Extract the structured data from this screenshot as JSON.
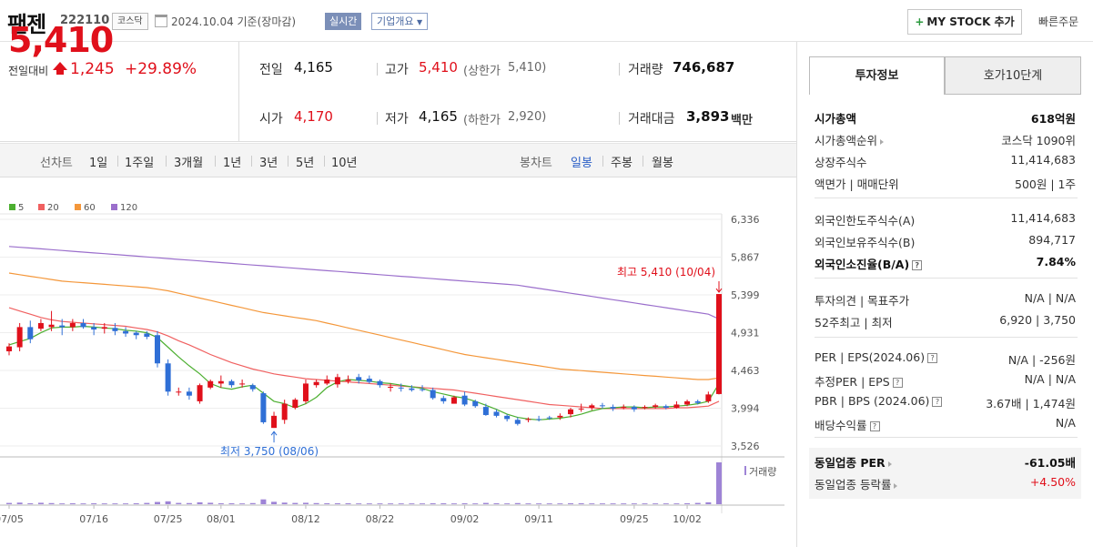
{
  "header": {
    "title": "팬젠",
    "code": "222110",
    "market": "코스닥",
    "date": "2024.10.04  기준(장마감)",
    "realtime": "실시간",
    "company_info": "기업개요",
    "mystock": "MY STOCK 추가",
    "quick_order": "빠른주문"
  },
  "price": {
    "current": "5,410",
    "change_label": "전일대비",
    "change": "1,245",
    "change_pct": "+29.89%",
    "prev_label": "전일",
    "prev": "4,165",
    "open_label": "시가",
    "open": "4,170",
    "high_label": "고가",
    "high": "5,410",
    "upper_label": "(상한가",
    "upper": "5,410)",
    "low_label": "저가",
    "low": "4,165",
    "lower_label": "(하한가",
    "lower": "2,920)",
    "volume_label": "거래량",
    "volume": "746,687",
    "amount_label": "거래대금",
    "amount": "3,893",
    "amount_unit": "백만"
  },
  "period_bar": {
    "line_label": "선차트",
    "line_items": [
      "1일",
      "1주일",
      "3개월",
      "1년",
      "3년",
      "5년",
      "10년"
    ],
    "candle_label": "봉차트",
    "candle_items": [
      "일봉",
      "주봉",
      "월봉"
    ],
    "active_candle": "일봉"
  },
  "colors": {
    "up": "#e0101b",
    "down": "#2f6fd6",
    "ma5": "#4caf30",
    "ma20": "#f06060",
    "ma60": "#f4973a",
    "ma120": "#9b6fcc",
    "volume": "#9e84d6",
    "accent": "#4c6aa3"
  },
  "chart_data": {
    "type": "candlestick",
    "legend": [
      {
        "name": "5",
        "color": "#4caf30"
      },
      {
        "name": "20",
        "color": "#f06060"
      },
      {
        "name": "60",
        "color": "#f4973a"
      },
      {
        "name": "120",
        "color": "#9b6fcc"
      }
    ],
    "y_ticks": [
      "6,336",
      "5,867",
      "5,399",
      "4,931",
      "4,463",
      "3,994",
      "3,526"
    ],
    "ylim": [
      3526,
      6336
    ],
    "x_ticks": [
      "07/05",
      "07/16",
      "07/25",
      "08/01",
      "08/12",
      "08/22",
      "09/02",
      "09/11",
      "09/25",
      "10/02"
    ],
    "max_label": "최고 5,410 (10/04)",
    "min_label": "최저 3,750 (08/06)",
    "volume_label": "거래량",
    "candles": [
      {
        "o": 4700,
        "c": 4760,
        "h": 4800,
        "l": 4650
      },
      {
        "o": 4750,
        "c": 5000,
        "h": 5050,
        "l": 4700
      },
      {
        "o": 5000,
        "c": 4850,
        "h": 5080,
        "l": 4800
      },
      {
        "o": 4980,
        "c": 5050,
        "h": 5100,
        "l": 4950
      },
      {
        "o": 5000,
        "c": 5030,
        "h": 5200,
        "l": 4950
      },
      {
        "o": 5020,
        "c": 5000,
        "h": 5100,
        "l": 4900
      },
      {
        "o": 5000,
        "c": 5050,
        "h": 5100,
        "l": 4950
      },
      {
        "o": 5050,
        "c": 5000,
        "h": 5100,
        "l": 4980
      },
      {
        "o": 5000,
        "c": 4970,
        "h": 5050,
        "l": 4900
      },
      {
        "o": 4980,
        "c": 5000,
        "h": 5050,
        "l": 4920
      },
      {
        "o": 4990,
        "c": 4950,
        "h": 5050,
        "l": 4900
      },
      {
        "o": 4950,
        "c": 4920,
        "h": 5000,
        "l": 4880
      },
      {
        "o": 4930,
        "c": 4900,
        "h": 4950,
        "l": 4850
      },
      {
        "o": 4920,
        "c": 4880,
        "h": 4950,
        "l": 4850
      },
      {
        "o": 4900,
        "c": 4550,
        "h": 4950,
        "l": 4500
      },
      {
        "o": 4550,
        "c": 4200,
        "h": 4600,
        "l": 4150
      },
      {
        "o": 4200,
        "c": 4200,
        "h": 4250,
        "l": 4150
      },
      {
        "o": 4200,
        "c": 4150,
        "h": 4250,
        "l": 4100
      },
      {
        "o": 4080,
        "c": 4280,
        "h": 4300,
        "l": 4050
      },
      {
        "o": 4250,
        "c": 4330,
        "h": 4350,
        "l": 4230
      },
      {
        "o": 4300,
        "c": 4330,
        "h": 4400,
        "l": 4250
      },
      {
        "o": 4330,
        "c": 4280,
        "h": 4350,
        "l": 4250
      },
      {
        "o": 4300,
        "c": 4300,
        "h": 4350,
        "l": 4250
      },
      {
        "o": 4280,
        "c": 4230,
        "h": 4300,
        "l": 4200
      },
      {
        "o": 4180,
        "c": 3820,
        "h": 4200,
        "l": 3800
      },
      {
        "o": 3750,
        "c": 3900,
        "h": 3950,
        "l": 3750
      },
      {
        "o": 3850,
        "c": 4050,
        "h": 4100,
        "l": 3800
      },
      {
        "o": 4000,
        "c": 4100,
        "h": 4120,
        "l": 3980
      },
      {
        "o": 4080,
        "c": 4300,
        "h": 4350,
        "l": 4050
      },
      {
        "o": 4280,
        "c": 4320,
        "h": 4350,
        "l": 4250
      },
      {
        "o": 4300,
        "c": 4350,
        "h": 4400,
        "l": 4280
      },
      {
        "o": 4290,
        "c": 4380,
        "h": 4420,
        "l": 4250
      },
      {
        "o": 4330,
        "c": 4350,
        "h": 4400,
        "l": 4300
      },
      {
        "o": 4380,
        "c": 4340,
        "h": 4420,
        "l": 4300
      },
      {
        "o": 4360,
        "c": 4320,
        "h": 4400,
        "l": 4300
      },
      {
        "o": 4330,
        "c": 4280,
        "h": 4350,
        "l": 4250
      },
      {
        "o": 4250,
        "c": 4260,
        "h": 4300,
        "l": 4200
      },
      {
        "o": 4250,
        "c": 4240,
        "h": 4300,
        "l": 4200
      },
      {
        "o": 4240,
        "c": 4220,
        "h": 4280,
        "l": 4200
      },
      {
        "o": 4230,
        "c": 4220,
        "h": 4280,
        "l": 4200
      },
      {
        "o": 4220,
        "c": 4120,
        "h": 4250,
        "l": 4100
      },
      {
        "o": 4120,
        "c": 4080,
        "h": 4150,
        "l": 4050
      },
      {
        "o": 4050,
        "c": 4130,
        "h": 4150,
        "l": 4050
      },
      {
        "o": 4150,
        "c": 4040,
        "h": 4200,
        "l": 4020
      },
      {
        "o": 4080,
        "c": 4020,
        "h": 4100,
        "l": 4000
      },
      {
        "o": 4010,
        "c": 3910,
        "h": 4050,
        "l": 3900
      },
      {
        "o": 3950,
        "c": 3900,
        "h": 3980,
        "l": 3880
      },
      {
        "o": 3900,
        "c": 3860,
        "h": 3920,
        "l": 3830
      },
      {
        "o": 3850,
        "c": 3800,
        "h": 3880,
        "l": 3780
      },
      {
        "o": 3850,
        "c": 3860,
        "h": 3880,
        "l": 3820
      },
      {
        "o": 3860,
        "c": 3850,
        "h": 3900,
        "l": 3830
      },
      {
        "o": 3880,
        "c": 3870,
        "h": 3900,
        "l": 3850
      },
      {
        "o": 3880,
        "c": 3900,
        "h": 3930,
        "l": 3850
      },
      {
        "o": 3920,
        "c": 3980,
        "h": 4000,
        "l": 3880
      },
      {
        "o": 3980,
        "c": 3990,
        "h": 4050,
        "l": 3950
      },
      {
        "o": 4000,
        "c": 4030,
        "h": 4050,
        "l": 3970
      },
      {
        "o": 4030,
        "c": 4020,
        "h": 4060,
        "l": 3990
      },
      {
        "o": 4010,
        "c": 3990,
        "h": 4040,
        "l": 3960
      },
      {
        "o": 4000,
        "c": 4010,
        "h": 4040,
        "l": 3980
      },
      {
        "o": 4010,
        "c": 3980,
        "h": 4030,
        "l": 3950
      },
      {
        "o": 4000,
        "c": 4010,
        "h": 4030,
        "l": 3980
      },
      {
        "o": 4010,
        "c": 4030,
        "h": 4050,
        "l": 3990
      },
      {
        "o": 4020,
        "c": 4000,
        "h": 4040,
        "l": 3980
      },
      {
        "o": 4000,
        "c": 4040,
        "h": 4080,
        "l": 3990
      },
      {
        "o": 4040,
        "c": 4080,
        "h": 4100,
        "l": 4020
      },
      {
        "o": 4080,
        "c": 4060,
        "h": 4100,
        "l": 4040
      },
      {
        "o": 4080,
        "c": 4165,
        "h": 4200,
        "l": 4060
      },
      {
        "o": 4170,
        "c": 5410,
        "h": 5410,
        "l": 4165
      }
    ],
    "ma5": [
      4780,
      4820,
      4860,
      4930,
      4990,
      5000,
      5000,
      5010,
      5000,
      4990,
      4980,
      4960,
      4950,
      4930,
      4870,
      4750,
      4630,
      4520,
      4420,
      4300,
      4250,
      4230,
      4260,
      4280,
      4180,
      4080,
      4050,
      4000,
      4050,
      4130,
      4250,
      4320,
      4350,
      4340,
      4330,
      4310,
      4300,
      4280,
      4260,
      4240,
      4200,
      4170,
      4140,
      4120,
      4080,
      4030,
      3980,
      3920,
      3880,
      3860,
      3850,
      3860,
      3870,
      3890,
      3920,
      3960,
      3990,
      4000,
      4010,
      4010,
      4000,
      4010,
      4010,
      4020,
      4030,
      4050,
      4080,
      4300
    ],
    "ma20": [
      5240,
      5200,
      5160,
      5120,
      5090,
      5070,
      5060,
      5050,
      5040,
      5030,
      5020,
      5010,
      4990,
      4970,
      4940,
      4890,
      4830,
      4780,
      4720,
      4660,
      4610,
      4560,
      4520,
      4480,
      4450,
      4420,
      4400,
      4380,
      4360,
      4350,
      4340,
      4330,
      4320,
      4310,
      4300,
      4290,
      4280,
      4270,
      4260,
      4250,
      4240,
      4230,
      4220,
      4200,
      4180,
      4160,
      4140,
      4120,
      4100,
      4080,
      4060,
      4040,
      4030,
      4020,
      4010,
      4000,
      3990,
      3990,
      3990,
      3990,
      3990,
      3990,
      3990,
      4000,
      4000,
      4010,
      4020,
      4080
    ],
    "ma60": [
      5670,
      5650,
      5630,
      5610,
      5590,
      5570,
      5560,
      5550,
      5540,
      5530,
      5520,
      5510,
      5500,
      5490,
      5470,
      5450,
      5420,
      5390,
      5360,
      5330,
      5300,
      5270,
      5240,
      5210,
      5180,
      5160,
      5140,
      5120,
      5100,
      5080,
      5050,
      5020,
      4990,
      4960,
      4930,
      4900,
      4870,
      4840,
      4810,
      4780,
      4750,
      4720,
      4690,
      4660,
      4640,
      4620,
      4600,
      4580,
      4560,
      4540,
      4520,
      4500,
      4480,
      4470,
      4460,
      4450,
      4440,
      4430,
      4420,
      4410,
      4400,
      4390,
      4380,
      4370,
      4360,
      4350,
      4350,
      4370
    ],
    "ma120": [
      6000,
      5990,
      5980,
      5970,
      5960,
      5950,
      5940,
      5930,
      5920,
      5910,
      5900,
      5890,
      5880,
      5870,
      5860,
      5850,
      5840,
      5830,
      5820,
      5810,
      5800,
      5790,
      5780,
      5770,
      5760,
      5750,
      5740,
      5730,
      5720,
      5710,
      5700,
      5690,
      5680,
      5670,
      5660,
      5650,
      5640,
      5630,
      5620,
      5610,
      5600,
      5590,
      5580,
      5570,
      5560,
      5550,
      5540,
      5530,
      5520,
      5500,
      5480,
      5460,
      5440,
      5420,
      5400,
      5380,
      5360,
      5340,
      5320,
      5300,
      5280,
      5260,
      5240,
      5220,
      5200,
      5180,
      5160,
      5100
    ],
    "volume": [
      8,
      10,
      6,
      9,
      7,
      5,
      6,
      5,
      6,
      5,
      5,
      5,
      6,
      8,
      14,
      18,
      8,
      7,
      12,
      9,
      6,
      6,
      5,
      7,
      30,
      15,
      10,
      8,
      9,
      7,
      6,
      6,
      6,
      5,
      5,
      5,
      5,
      5,
      5,
      5,
      6,
      6,
      5,
      6,
      5,
      8,
      6,
      5,
      7,
      5,
      5,
      5,
      5,
      6,
      6,
      5,
      5,
      5,
      5,
      5,
      5,
      5,
      5,
      5,
      6,
      8,
      12,
      260
    ]
  },
  "info": {
    "tab_active": "투자정보",
    "tab_other": "호가10단계",
    "rows_1": [
      {
        "k": "시가총액",
        "v": "618억원",
        "bold": true,
        "tri": false,
        "q": false
      },
      {
        "k": "시가총액순위",
        "v": "코스닥 1090위",
        "bold": false,
        "tri": true,
        "q": false
      },
      {
        "k": "상장주식수",
        "v": "11,414,683",
        "bold": false,
        "tri": false,
        "q": false
      },
      {
        "k": "액면가 | 매매단위",
        "v": "500원 | 1주",
        "bold": false,
        "tri": false,
        "q": false
      }
    ],
    "rows_2": [
      {
        "k": "외국인한도주식수(A)",
        "v": "11,414,683",
        "bold": false,
        "tri": false,
        "q": false
      },
      {
        "k": "외국인보유주식수(B)",
        "v": "894,717",
        "bold": false,
        "tri": false,
        "q": false
      },
      {
        "k": "외국인소진율(B/A)",
        "v": "7.84%",
        "bold": true,
        "tri": false,
        "q": true
      }
    ],
    "rows_3": [
      {
        "k": "투자의견 | 목표주가",
        "v": "N/A | N/A",
        "bold": false,
        "tri": false,
        "q": false
      },
      {
        "k": "52주최고 | 최저",
        "v": "6,920 | 3,750",
        "bold": false,
        "tri": false,
        "q": false
      }
    ],
    "rows_4": [
      {
        "k": "PER | EPS(2024.06)",
        "v": "N/A | -256원",
        "bold": false,
        "tri": false,
        "q": true
      },
      {
        "k": "추정PER | EPS",
        "v": "N/A | N/A",
        "bold": false,
        "tri": false,
        "q": true
      },
      {
        "k": "PBR | BPS (2024.06)",
        "v": "3.67배 | 1,474원",
        "bold": false,
        "tri": false,
        "q": true
      },
      {
        "k": "배당수익률",
        "v": "N/A",
        "bold": false,
        "tri": false,
        "q": true
      }
    ],
    "rows_5": [
      {
        "k": "동일업종 PER",
        "v": "-61.05배",
        "bold": true,
        "tri": true,
        "q": false,
        "red": false
      },
      {
        "k": "동일업종 등락률",
        "v": "+4.50%",
        "bold": false,
        "tri": true,
        "q": false,
        "red": true
      }
    ]
  }
}
